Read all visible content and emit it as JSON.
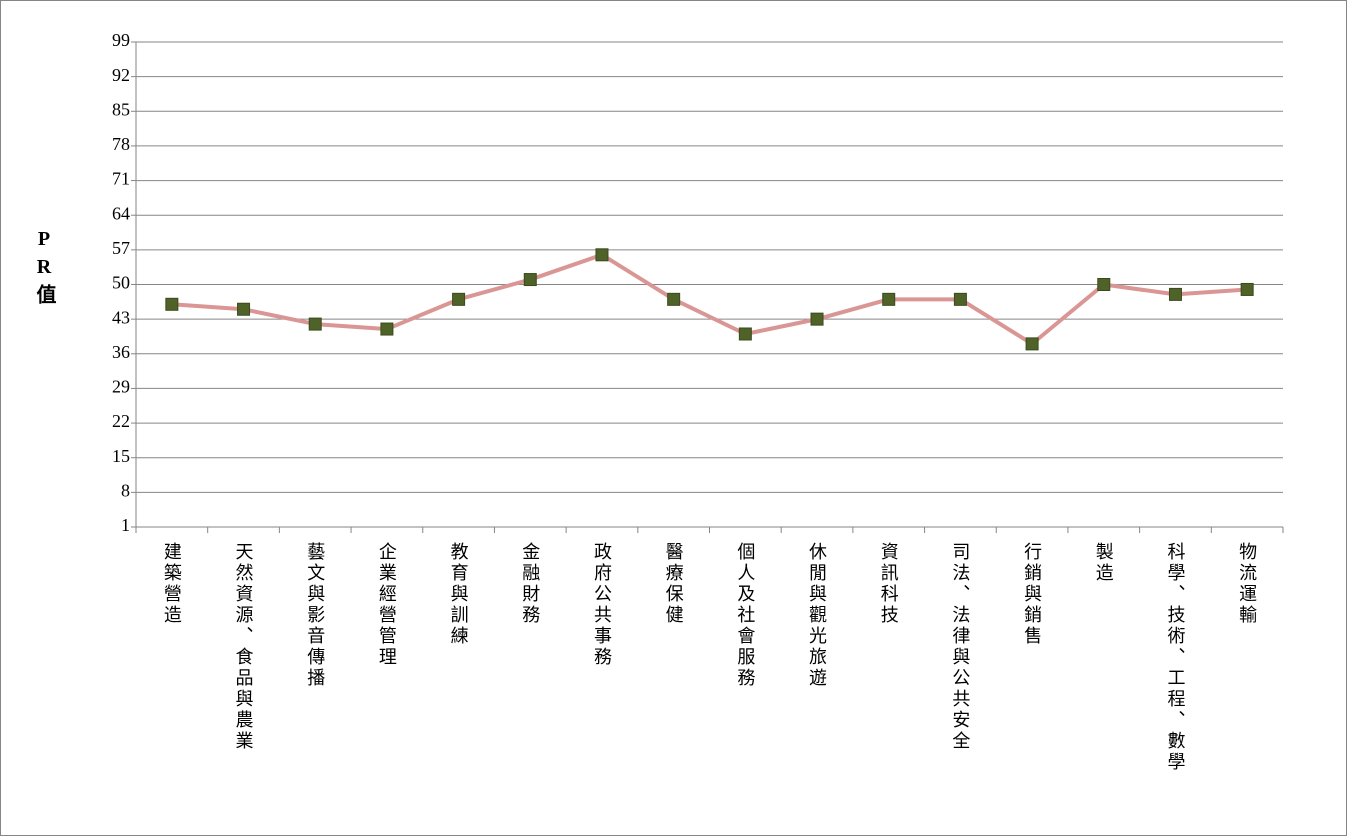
{
  "chart_data": {
    "type": "line",
    "y_label": "PR值",
    "categories": [
      "建築營造",
      "天然資源、食品與農業",
      "藝文與影音傳播",
      "企業經營管理",
      "教育與訓練",
      "金融財務",
      "政府公共事務",
      "醫療保健",
      "個人及社會服務",
      "休閒與觀光旅遊",
      "資訊科技",
      "司法、法律與公共安全",
      "行銷與銷售",
      "製造",
      "科學、技術、工程、數學",
      "物流運輸"
    ],
    "values": [
      46,
      45,
      42,
      41,
      47,
      51,
      56,
      47,
      40,
      43,
      47,
      47,
      38,
      50,
      48,
      49
    ],
    "color": "#d99694",
    "marker_color": "#4f6228",
    "ylim": [
      1,
      99
    ],
    "yticks": [
      1,
      8,
      15,
      22,
      29,
      36,
      43,
      50,
      57,
      64,
      71,
      78,
      85,
      92,
      99
    ],
    "grid": true
  }
}
